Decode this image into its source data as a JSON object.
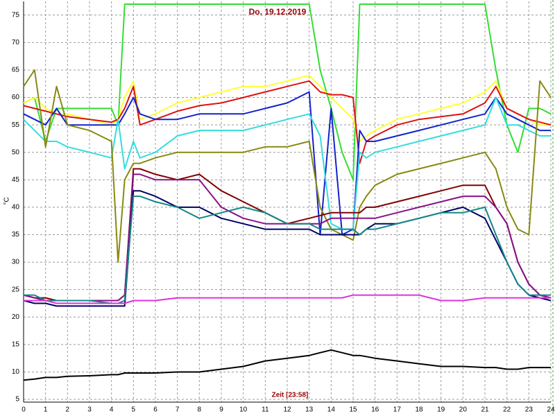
{
  "chart_data": {
    "type": "line",
    "title": "Do, 19.12.2019",
    "x_label": "Zeit [23:58]",
    "y_label": "°C",
    "xlim": [
      0,
      24
    ],
    "xticks": [
      0,
      1,
      2,
      3,
      4,
      5,
      6,
      7,
      8,
      9,
      10,
      11,
      12,
      13,
      14,
      15,
      16,
      17,
      18,
      19,
      20,
      21,
      22,
      23,
      24
    ],
    "ylim": [
      4.5,
      77.5
    ],
    "yticks": [
      5,
      10,
      15,
      20,
      25,
      30,
      35,
      40,
      45,
      50,
      55,
      60,
      65,
      70,
      75
    ],
    "grid": true,
    "x": [
      0,
      0.5,
      1,
      1.5,
      2,
      3,
      4,
      4.3,
      4.6,
      5,
      5.3,
      6,
      7,
      8,
      9,
      10,
      11,
      12,
      13,
      13.5,
      14,
      14.5,
      15,
      15.3,
      15.6,
      16,
      17,
      18,
      19,
      20,
      21,
      21.5,
      22,
      22.5,
      23,
      23.5,
      24
    ],
    "series": [
      {
        "color": "#33dd33",
        "values": [
          59,
          60,
          52,
          58,
          58,
          58,
          58,
          55,
          77,
          77,
          77,
          77,
          77,
          77,
          77,
          77,
          77,
          77,
          77,
          65,
          58,
          50,
          45,
          77,
          77,
          77,
          77,
          77,
          77,
          77,
          77,
          65,
          55,
          50,
          58,
          58,
          57
        ]
      },
      {
        "color": "#ffff33",
        "values": [
          59,
          60,
          58,
          57,
          57,
          56,
          55,
          56,
          60,
          63,
          56,
          57,
          59,
          60,
          61,
          62,
          62,
          63,
          64,
          62,
          60,
          58,
          56,
          52,
          53,
          54,
          56,
          57,
          58,
          59,
          61,
          63,
          58,
          57,
          56,
          55,
          55
        ]
      },
      {
        "color": "#dd1111",
        "values": [
          58.5,
          58,
          57.5,
          57,
          56.5,
          56,
          55.5,
          56,
          58,
          62,
          55,
          56,
          57.5,
          58.5,
          59,
          60,
          61,
          62,
          63,
          61,
          60.5,
          60.5,
          60,
          48,
          52,
          53,
          55,
          56,
          56.5,
          57,
          59,
          62,
          58,
          57,
          56,
          55.5,
          55
        ]
      },
      {
        "color": "#1122cc",
        "values": [
          57,
          56,
          55,
          58,
          55,
          55,
          55,
          55,
          57,
          60,
          57,
          56,
          56,
          57,
          57,
          57,
          58,
          59,
          61,
          35,
          58,
          35,
          36,
          54,
          52,
          52,
          53,
          54,
          55,
          56,
          57,
          60,
          57,
          56,
          55,
          54,
          54
        ]
      },
      {
        "color": "#33dddd",
        "values": [
          56,
          54,
          52,
          52,
          51,
          50,
          49,
          56,
          47,
          52,
          49,
          50,
          53,
          54,
          54,
          54,
          55,
          56,
          57,
          53,
          37,
          36,
          36,
          50,
          49,
          50,
          51,
          52,
          53,
          54,
          55,
          60,
          55,
          55,
          54,
          53,
          53
        ]
      },
      {
        "color": "#888811",
        "values": [
          62,
          65,
          51,
          62,
          55,
          54,
          52,
          30,
          45,
          48,
          48,
          49,
          50,
          50,
          50,
          50,
          51,
          51,
          52,
          40,
          36,
          35,
          34,
          40,
          42,
          44,
          46,
          47,
          48,
          49,
          50,
          47,
          40,
          36,
          35,
          63,
          60
        ]
      },
      {
        "color": "#800000",
        "values": [
          24,
          23.5,
          23.5,
          23,
          23,
          23,
          23,
          23,
          24,
          47,
          47,
          46,
          45,
          46,
          43,
          41,
          39,
          37,
          38,
          38.5,
          39,
          39,
          39,
          39,
          40,
          40,
          41,
          42,
          43,
          44,
          44,
          40,
          37,
          30,
          26,
          24,
          23.5
        ]
      },
      {
        "color": "#881188",
        "values": [
          24,
          23.5,
          23,
          23,
          23,
          23,
          23,
          23,
          24,
          46,
          46,
          45,
          45,
          45,
          40,
          38,
          37,
          37,
          37,
          37,
          38,
          38,
          38,
          38,
          38,
          38,
          39,
          40,
          41,
          42,
          42,
          40,
          37,
          30,
          26,
          24,
          23.5
        ]
      },
      {
        "color": "#000066",
        "values": [
          23,
          22.5,
          22.5,
          22,
          22,
          22,
          22,
          22,
          22,
          43,
          43,
          42,
          40,
          40,
          38,
          37,
          36,
          36,
          36,
          35,
          35,
          35,
          35,
          35,
          36,
          37,
          37,
          38,
          39,
          40,
          38,
          34,
          30,
          26,
          24,
          23.5,
          23
        ]
      },
      {
        "color": "#118888",
        "values": [
          24,
          24,
          23,
          23,
          23,
          23,
          22.5,
          22.5,
          23,
          42,
          42,
          41,
          40,
          38,
          39,
          40,
          39,
          37,
          37,
          36,
          36,
          36,
          36,
          35,
          36,
          36,
          37,
          38,
          39,
          39,
          40,
          35,
          30,
          26,
          24,
          24,
          24
        ]
      },
      {
        "color": "#dd33dd",
        "values": [
          23,
          23,
          23,
          22.5,
          22.5,
          22.5,
          22.5,
          22.5,
          22.5,
          23,
          23,
          23,
          23.5,
          23.5,
          23.5,
          23.5,
          23.5,
          23.5,
          23.5,
          23.5,
          23.5,
          23.5,
          24,
          24,
          24,
          24,
          24,
          24,
          23,
          23,
          23.5,
          23.5,
          23.5,
          23.5,
          23.5,
          23.5,
          23.5
        ]
      },
      {
        "color": "#000000",
        "values": [
          8.5,
          8.7,
          9,
          9,
          9.2,
          9.3,
          9.5,
          9.5,
          9.8,
          9.8,
          9.8,
          9.8,
          10,
          10,
          10.5,
          11,
          12,
          12.5,
          13,
          13.5,
          14,
          13.5,
          13,
          13,
          12.8,
          12.5,
          12,
          11.5,
          11,
          11,
          10.8,
          10.8,
          10.5,
          10.5,
          10.8,
          10.8,
          10.8
        ]
      }
    ]
  }
}
